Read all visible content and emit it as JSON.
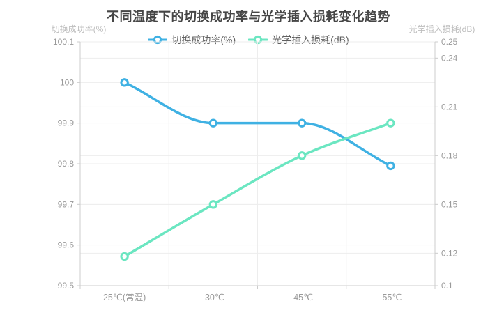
{
  "title": "不同温度下的切换成功率与光学插入损耗变化趋势",
  "left_axis_name": "切换成功率(%)",
  "right_axis_name": "光学插入损耗(dB)",
  "colors": {
    "series_success_rate": "#3fb1e3",
    "series_insertion_loss": "#6be6c1",
    "title_text": "#464646",
    "legend_text": "#606060",
    "tick_text": "#999999",
    "axis_name_text": "#bdbdbd",
    "axis_line": "#cccccc",
    "grid_line": "#ededed",
    "background": "#ffffff"
  },
  "chart_data": {
    "type": "line",
    "title": "不同温度下的切换成功率与光学插入损耗变化趋势",
    "categories": [
      "25℃(常温)",
      "-30℃",
      "-45℃",
      "-55℃"
    ],
    "series": [
      {
        "name": "切换成功率(%)",
        "yaxis": "left",
        "color": "#3fb1e3",
        "values": [
          100,
          99.9,
          99.9,
          99.795
        ],
        "smooth": true,
        "marker": "empty-circle"
      },
      {
        "name": "光学插入损耗(dB)",
        "yaxis": "right",
        "color": "#6be6c1",
        "values": [
          0.118,
          0.15,
          0.18,
          0.2
        ],
        "smooth": true,
        "marker": "empty-circle"
      }
    ],
    "left_axis": {
      "name": "切换成功率(%)",
      "min": 99.5,
      "max": 100.1,
      "interval": 0.1,
      "ticks": [
        {
          "value": 100.1,
          "label": "100.1"
        },
        {
          "value": 100,
          "label": "100"
        },
        {
          "value": 99.9,
          "label": "99.9"
        },
        {
          "value": 99.8,
          "label": "99.8"
        },
        {
          "value": 99.7,
          "label": "99.7"
        },
        {
          "value": 99.6,
          "label": "99.6"
        },
        {
          "value": 99.5,
          "label": "99.5"
        }
      ]
    },
    "right_axis": {
      "name": "光学插入损耗(dB)",
      "min": 0.1,
      "max": 0.25,
      "ticks": [
        {
          "value": 0.25,
          "label": "0.25"
        },
        {
          "value": 0.24,
          "label": "0.24"
        },
        {
          "value": 0.21,
          "label": "0.21"
        },
        {
          "value": 0.18,
          "label": "0.18"
        },
        {
          "value": 0.15,
          "label": "0.15"
        },
        {
          "value": 0.12,
          "label": "0.12"
        },
        {
          "value": 0.1,
          "label": "0.1"
        }
      ]
    },
    "legend_position": "top-center",
    "grid": true
  }
}
